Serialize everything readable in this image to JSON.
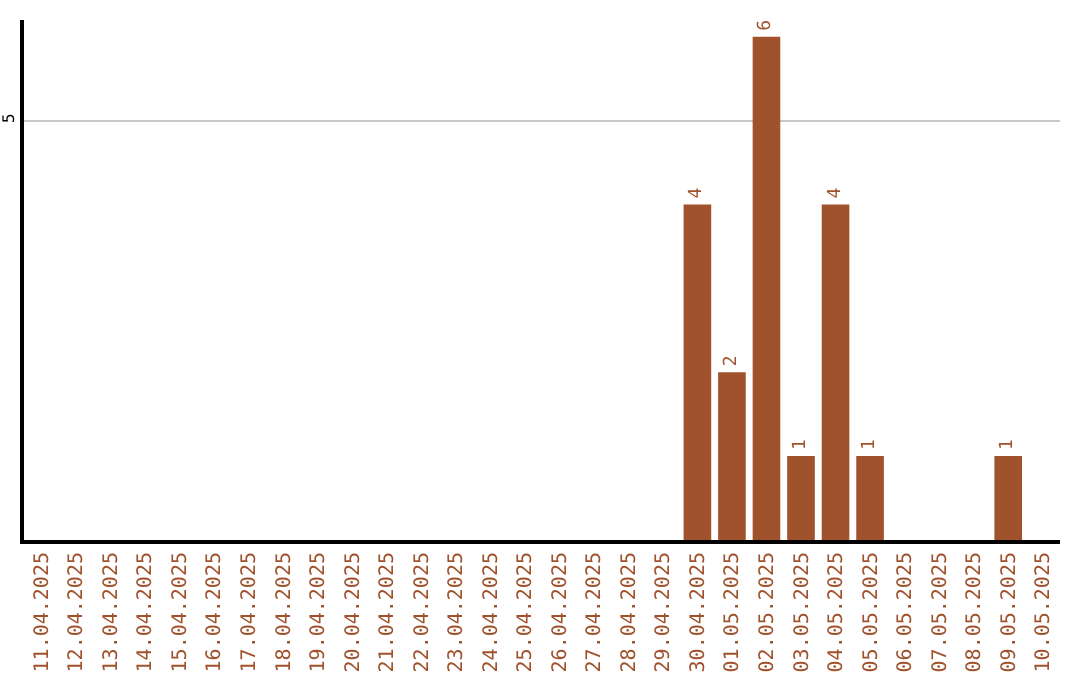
{
  "chart_data": {
    "type": "bar",
    "categories": [
      "11.04.2025",
      "12.04.2025",
      "13.04.2025",
      "14.04.2025",
      "15.04.2025",
      "16.04.2025",
      "17.04.2025",
      "18.04.2025",
      "19.04.2025",
      "20.04.2025",
      "21.04.2025",
      "22.04.2025",
      "23.04.2025",
      "24.04.2025",
      "25.04.2025",
      "26.04.2025",
      "27.04.2025",
      "28.04.2025",
      "29.04.2025",
      "30.04.2025",
      "01.05.2025",
      "02.05.2025",
      "03.05.2025",
      "04.05.2025",
      "05.05.2025",
      "06.05.2025",
      "07.05.2025",
      "08.05.2025",
      "09.05.2025",
      "10.05.2025"
    ],
    "values": [
      null,
      null,
      null,
      null,
      null,
      null,
      null,
      null,
      null,
      null,
      null,
      null,
      null,
      null,
      null,
      null,
      null,
      null,
      null,
      4,
      2,
      6,
      1,
      4,
      1,
      null,
      null,
      null,
      1,
      null
    ],
    "color": "#a0522d",
    "ylim": [
      0,
      6.2
    ],
    "yticks": [
      5
    ],
    "grid": "y",
    "data_labels": true
  }
}
